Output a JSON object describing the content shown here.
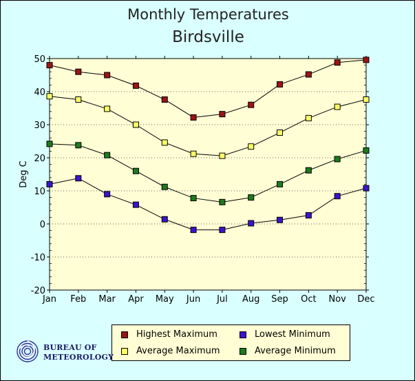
{
  "title": "Monthly Temperatures",
  "subtitle": "Birdsville",
  "logo": {
    "line1": "Bureau of",
    "line2": "Meteorology"
  },
  "chart_data": {
    "type": "line",
    "title": "Monthly Temperatures",
    "subtitle": "Birdsville",
    "xlabel": "",
    "ylabel": "Deg C",
    "categories": [
      "Jan",
      "Feb",
      "Mar",
      "Apr",
      "May",
      "Jun",
      "Jul",
      "Aug",
      "Sep",
      "Oct",
      "Nov",
      "Dec"
    ],
    "ylim": [
      -20,
      50
    ],
    "yticks": [
      -20,
      -10,
      0,
      10,
      20,
      30,
      40,
      50
    ],
    "grid": "horizontal dotted",
    "legend_position": "bottom",
    "plot_background": "#fffed5",
    "series": [
      {
        "name": "Highest Maximum",
        "color": "#9b1414",
        "values": [
          48.0,
          46.0,
          45.0,
          41.8,
          37.6,
          32.2,
          33.2,
          36.0,
          42.2,
          45.2,
          48.8,
          49.6
        ]
      },
      {
        "name": "Average Maximum",
        "color": "#ffff66",
        "values": [
          38.6,
          37.6,
          34.8,
          30.0,
          24.6,
          21.2,
          20.6,
          23.4,
          27.6,
          32.0,
          35.4,
          37.6
        ]
      },
      {
        "name": "Average Minimum",
        "color": "#1e7a1e",
        "values": [
          24.2,
          23.8,
          20.8,
          16.0,
          11.2,
          7.8,
          6.6,
          8.0,
          12.0,
          16.2,
          19.6,
          22.2
        ]
      },
      {
        "name": "Lowest Minimum",
        "color": "#3a14cc",
        "values": [
          12.0,
          13.8,
          9.0,
          5.8,
          1.4,
          -1.8,
          -1.8,
          0.2,
          1.2,
          2.6,
          8.4,
          10.8
        ]
      }
    ]
  },
  "legend": {
    "items": [
      {
        "label": "Highest Maximum",
        "color": "#9b1414"
      },
      {
        "label": "Lowest Minimum",
        "color": "#3a14cc"
      },
      {
        "label": "Average Maximum",
        "color": "#ffff66"
      },
      {
        "label": "Average Minimum",
        "color": "#1e7a1e"
      }
    ]
  }
}
